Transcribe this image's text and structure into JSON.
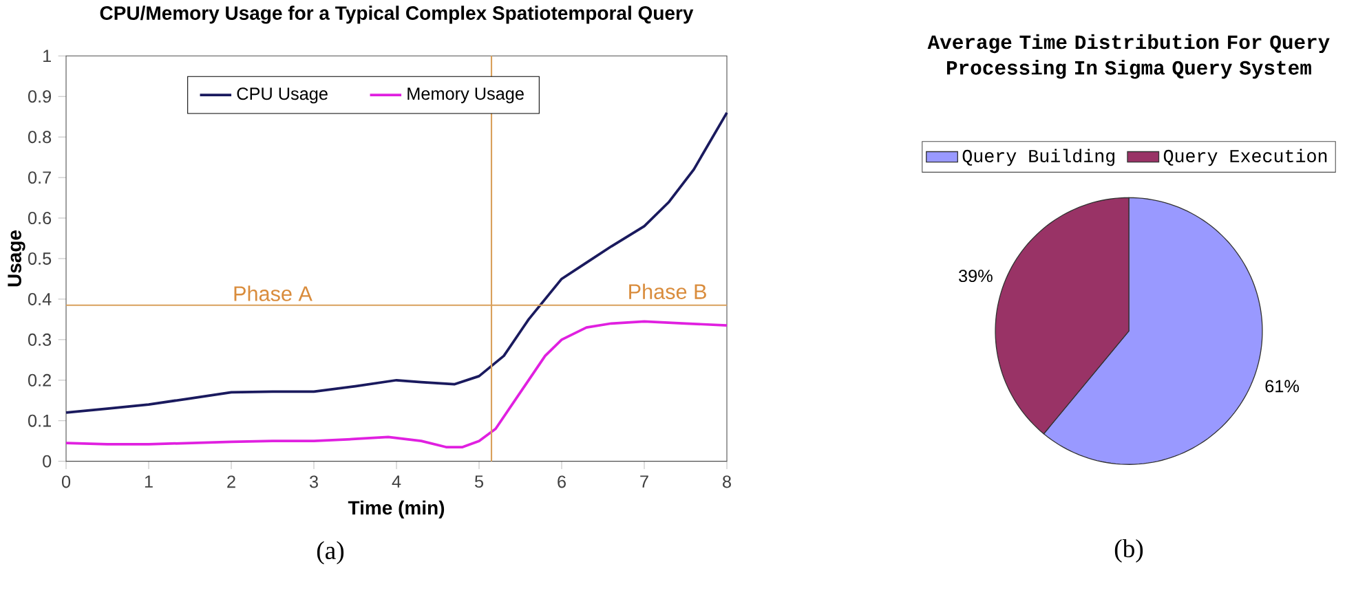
{
  "chart_data": [
    {
      "type": "line",
      "title": "CPU/Memory Usage for a Typical Complex Spatiotemporal Query",
      "xlabel": "Time (min)",
      "ylabel": "Usage",
      "xlim": [
        0,
        8
      ],
      "xticks": [
        0,
        1,
        2,
        3,
        4,
        5,
        6,
        7,
        8
      ],
      "ylim": [
        0,
        1
      ],
      "yticks": [
        0,
        0.1,
        0.2,
        0.3,
        0.4,
        0.5,
        0.6,
        0.7,
        0.8,
        0.9,
        1
      ],
      "marker": "none",
      "legend": "top",
      "grid": false,
      "series": [
        {
          "name": "CPU Usage",
          "color": "#1a1a5e",
          "x": [
            0,
            0.5,
            1,
            1.5,
            2,
            2.5,
            3,
            3.5,
            4,
            4.3,
            4.7,
            5,
            5.3,
            5.6,
            6,
            6.3,
            6.6,
            7,
            7.3,
            7.6,
            8
          ],
          "values": [
            0.12,
            0.13,
            0.14,
            0.155,
            0.17,
            0.172,
            0.172,
            0.185,
            0.2,
            0.195,
            0.19,
            0.21,
            0.26,
            0.35,
            0.45,
            0.49,
            0.53,
            0.58,
            0.64,
            0.72,
            0.86
          ]
        },
        {
          "name": "Memory Usage",
          "color": "#e020e0",
          "x": [
            0,
            0.5,
            1,
            1.5,
            2,
            2.5,
            3,
            3.5,
            3.9,
            4.3,
            4.6,
            4.8,
            5,
            5.2,
            5.5,
            5.8,
            6,
            6.3,
            6.6,
            7,
            7.5,
            8
          ],
          "values": [
            0.045,
            0.042,
            0.042,
            0.045,
            0.048,
            0.05,
            0.05,
            0.055,
            0.06,
            0.05,
            0.035,
            0.035,
            0.05,
            0.08,
            0.17,
            0.26,
            0.3,
            0.33,
            0.34,
            0.345,
            0.34,
            0.335
          ]
        }
      ],
      "ref_lines": [
        {
          "axis": "y",
          "value": 0.385,
          "color": "#d9a05b"
        },
        {
          "axis": "x",
          "value": 5.15,
          "color": "#d9a05b"
        }
      ],
      "annotations": [
        {
          "text": "Phase A",
          "x": 2.5,
          "y": 0.385
        },
        "Phase B",
        "(a)"
      ]
    },
    {
      "type": "pie",
      "title": "Average Time Distribution For Query Processing In Sigma Query System",
      "categories": [
        "Query Building",
        "Query Execution"
      ],
      "values": [
        61,
        39
      ],
      "colors": [
        "#9999ff",
        "#993366"
      ],
      "value_labels": [
        "61%",
        "39%"
      ],
      "legend": "top",
      "annotations": [
        "(b)"
      ]
    }
  ]
}
